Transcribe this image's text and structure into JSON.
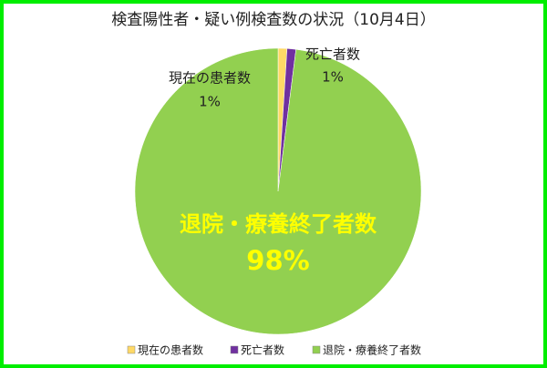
{
  "chart_data": {
    "type": "pie",
    "title": "検査陽性者・疑い例検査数の状況（10月4日）",
    "categories": [
      "現在の患者数",
      "死亡者数",
      "退院・療養終了者数"
    ],
    "values": [
      1,
      1,
      98
    ],
    "value_labels": [
      "1%",
      "1%",
      "98%"
    ],
    "colors": [
      "#ffd966",
      "#7030a0",
      "#92d050"
    ],
    "legend": "bottom"
  }
}
